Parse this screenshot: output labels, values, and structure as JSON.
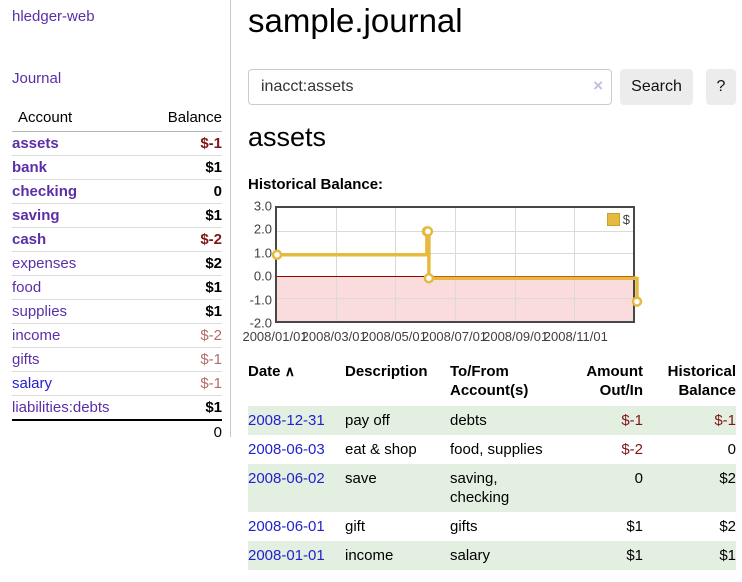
{
  "app": {
    "brand": "hledger-web",
    "nav_journal": "Journal"
  },
  "sidebar": {
    "col_account": "Account",
    "col_balance": "Balance",
    "accounts": [
      {
        "name": "assets",
        "level": 0,
        "bold": "true",
        "link": "purple",
        "balance": "$-1",
        "tone": "neg"
      },
      {
        "name": "bank",
        "level": 1,
        "bold": "true",
        "link": "purple",
        "balance": "$1",
        "tone": "black"
      },
      {
        "name": "checking",
        "level": 2,
        "bold": "true",
        "link": "purple",
        "balance": "0",
        "tone": "black"
      },
      {
        "name": "saving",
        "level": 2,
        "bold": "true",
        "link": "purple",
        "balance": "$1",
        "tone": "black"
      },
      {
        "name": "cash",
        "level": 1,
        "bold": "true",
        "link": "purple",
        "balance": "$-2",
        "tone": "neg"
      },
      {
        "name": "expenses",
        "level": 0,
        "bold": "false",
        "link": "purple",
        "balance": "$2",
        "tone": "black"
      },
      {
        "name": "food",
        "level": 1,
        "bold": "false",
        "link": "purple",
        "balance": "$1",
        "tone": "black"
      },
      {
        "name": "supplies",
        "level": 1,
        "bold": "false",
        "link": "purple",
        "balance": "$1",
        "tone": "black"
      },
      {
        "name": "income",
        "level": 0,
        "bold": "false",
        "link": "purple",
        "balance": "$-2",
        "tone": "soft"
      },
      {
        "name": "gifts",
        "level": 1,
        "bold": "false",
        "link": "purple",
        "balance": "$-1",
        "tone": "soft"
      },
      {
        "name": "salary",
        "level": 1,
        "bold": "false",
        "link": "blue",
        "balance": "$-1",
        "tone": "soft"
      },
      {
        "name": "liabilities:debts",
        "level": 0,
        "bold": "false",
        "link": "purple",
        "balance": "$1",
        "tone": "black"
      }
    ],
    "total": "0"
  },
  "header": {
    "title": "sample.journal"
  },
  "search": {
    "value": "inacct:assets",
    "clear_icon": "×",
    "search_button": "Search",
    "help_button": "?"
  },
  "account_page": {
    "title": "assets",
    "chart_label": "Historical Balance:"
  },
  "chart_data": {
    "type": "line",
    "step": true,
    "title": "Historical Balance",
    "xlim": [
      "2008-01-01",
      "2008-12-31"
    ],
    "ylim": [
      -2,
      3
    ],
    "yticks": [
      "3.0",
      "2.0",
      "1.0",
      "0.0",
      "-1.0",
      "-2.0"
    ],
    "xticks": [
      "2008/01/01",
      "2008/03/01",
      "2008/05/01",
      "2008/07/01",
      "2008/09/01",
      "2008/11/01"
    ],
    "series": [
      {
        "name": "$",
        "color": "#e6ba3e",
        "points": [
          [
            "2008-01-01",
            1
          ],
          [
            "2008-06-01",
            2
          ],
          [
            "2008-06-02",
            2
          ],
          [
            "2008-06-03",
            0
          ],
          [
            "2008-12-31",
            -1
          ]
        ]
      }
    ],
    "legend": {
      "label": "$",
      "position": "top-right"
    },
    "negative_fill": "#fbdcdc",
    "zero_line_color": "#990000",
    "grid": true
  },
  "register": {
    "columns": {
      "date": "Date",
      "sort_icon": "∧",
      "description": "Description",
      "accounts": "To/From Account(s)",
      "amount": "Amount Out/In",
      "balance": "Historical Balance"
    },
    "rows": [
      {
        "date": "2008-12-31",
        "description": "pay off",
        "accounts": "debts",
        "amount": "$-1",
        "amount_tone": "neg",
        "balance": "$-1",
        "balance_tone": "neg"
      },
      {
        "date": "2008-06-03",
        "description": "eat & shop",
        "accounts": "food, supplies",
        "amount": "$-2",
        "amount_tone": "neg",
        "balance": "0",
        "balance_tone": "black"
      },
      {
        "date": "2008-06-02",
        "description": "save",
        "accounts": "saving, checking",
        "amount": "0",
        "amount_tone": "black",
        "balance": "$2",
        "balance_tone": "black"
      },
      {
        "date": "2008-06-01",
        "description": "gift",
        "accounts": "gifts",
        "amount": "$1",
        "amount_tone": "black",
        "balance": "$2",
        "balance_tone": "black"
      },
      {
        "date": "2008-01-01",
        "description": "income",
        "accounts": "salary",
        "amount": "$1",
        "amount_tone": "black",
        "balance": "$1",
        "balance_tone": "black"
      }
    ]
  }
}
